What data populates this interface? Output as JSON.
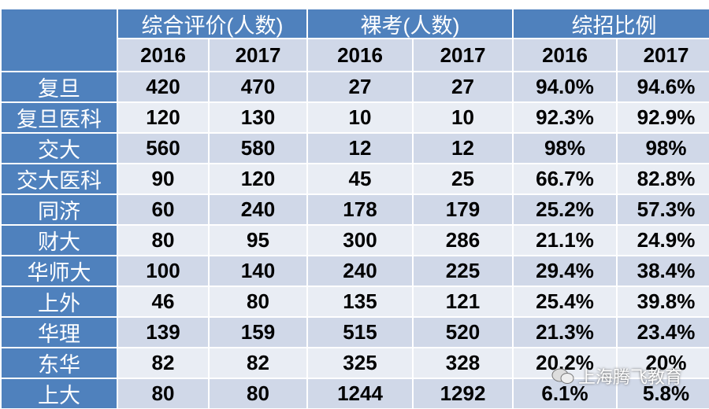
{
  "header": {
    "groups": [
      "综合评价(人数)",
      "裸考(人数)",
      "综招比例"
    ],
    "years": [
      "2016",
      "2017",
      "2016",
      "2017",
      "2016",
      "2017"
    ]
  },
  "table": {
    "rows": [
      [
        "复旦",
        "420",
        "470",
        "27",
        "27",
        "94.0%",
        "94.6%"
      ],
      [
        "复旦医科",
        "120",
        "130",
        "10",
        "10",
        "92.3%",
        "92.9%"
      ],
      [
        "交大",
        "560",
        "580",
        "12",
        "12",
        "98%",
        "98%"
      ],
      [
        "交大医科",
        "90",
        "120",
        "45",
        "25",
        "66.7%",
        "82.8%"
      ],
      [
        "同济",
        "60",
        "240",
        "178",
        "179",
        "25.2%",
        "57.3%"
      ],
      [
        "财大",
        "80",
        "95",
        "300",
        "286",
        "21.1%",
        "24.9%"
      ],
      [
        "华师大",
        "100",
        "140",
        "240",
        "225",
        "29.4%",
        "38.4%"
      ],
      [
        "上外",
        "46",
        "80",
        "135",
        "121",
        "25.4%",
        "39.8%"
      ],
      [
        "华理",
        "139",
        "159",
        "515",
        "520",
        "21.3%",
        "23.4%"
      ],
      [
        "东华",
        "82",
        "82",
        "325",
        "328",
        "20.2%",
        "20%"
      ],
      [
        "上大",
        "80",
        "80",
        "1244",
        "1292",
        "6.1%",
        "5.8%"
      ]
    ]
  },
  "watermark": "上海腾飞教育"
}
